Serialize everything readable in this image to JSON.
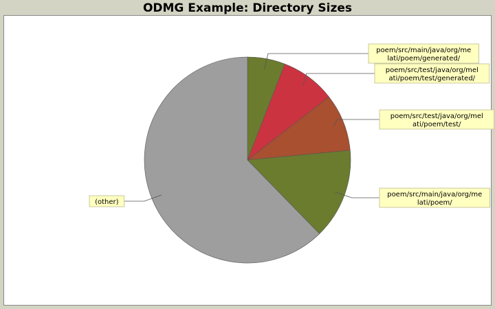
{
  "chart_data": {
    "type": "pie",
    "title": "ODMG Example: Directory Sizes",
    "categories": [
      [
        "poem/src/main/java/org/me",
        "lati/poem/generated/"
      ],
      [
        "poem/src/test/java/org/mel",
        "ati/poem/test/generated/"
      ],
      [
        "poem/src/test/java/org/mel",
        "ati/poem/test/"
      ],
      [
        "poem/src/main/java/org/me",
        "lati/poem/"
      ],
      [
        "(other)"
      ]
    ],
    "values": [
      5.9,
      8.6,
      9.0,
      14.2,
      62.3
    ],
    "colors": [
      "#6b7c2f",
      "#cc3340",
      "#a85030",
      "#6b7c2f",
      "#9e9e9e"
    ]
  }
}
